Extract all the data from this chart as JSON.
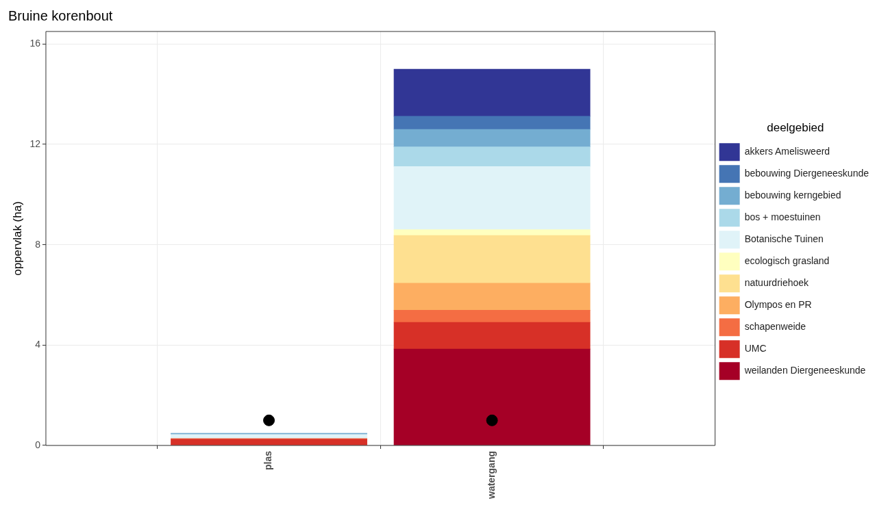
{
  "chart_data": {
    "type": "bar",
    "title": "Bruine korenbout",
    "ylabel": "oppervlak (ha)",
    "legend_title": "deelgebied",
    "categories": [
      "plas",
      "watergang"
    ],
    "stacked": true,
    "series": [
      {
        "name": "weilanden Diergeneeskunde",
        "color": "#a50026",
        "values": [
          null,
          3.84
        ]
      },
      {
        "name": "UMC",
        "color": "#d73027",
        "values": [
          0.25,
          1.07
        ]
      },
      {
        "name": "schapenweide",
        "color": "#f46d43",
        "values": [
          0.03,
          0.48
        ]
      },
      {
        "name": "Olympos en PR",
        "color": "#fdae61",
        "values": [
          null,
          1.08
        ]
      },
      {
        "name": "natuurdriehoek",
        "color": "#fee090",
        "values": [
          null,
          1.9
        ]
      },
      {
        "name": "ecologisch grasland",
        "color": "#ffffbf",
        "values": [
          null,
          0.23
        ]
      },
      {
        "name": "Botanische Tuinen",
        "color": "#e0f3f8",
        "values": [
          0.16,
          2.52
        ]
      },
      {
        "name": "bos + moestuinen",
        "color": "#abd9e9",
        "values": [
          null,
          0.78
        ]
      },
      {
        "name": "bebouwing kerngebied",
        "color": "#74add1",
        "values": [
          0.05,
          0.7
        ]
      },
      {
        "name": "bebouwing Diergeneeskunde",
        "color": "#4575b4",
        "values": [
          null,
          0.52
        ]
      },
      {
        "name": "akkers Amelisweerd",
        "color": "#313695",
        "values": [
          null,
          1.88
        ]
      },
      {
        "type": "scatter",
        "color": "#000000",
        "x": [
          "plas",
          "watergang"
        ],
        "values": [
          1,
          1
        ],
        "marker": "circle"
      }
    ],
    "ylim": [
      0,
      16.5
    ],
    "yticks": [
      0,
      4,
      8,
      12,
      16
    ],
    "grid": true,
    "legend": "right"
  }
}
